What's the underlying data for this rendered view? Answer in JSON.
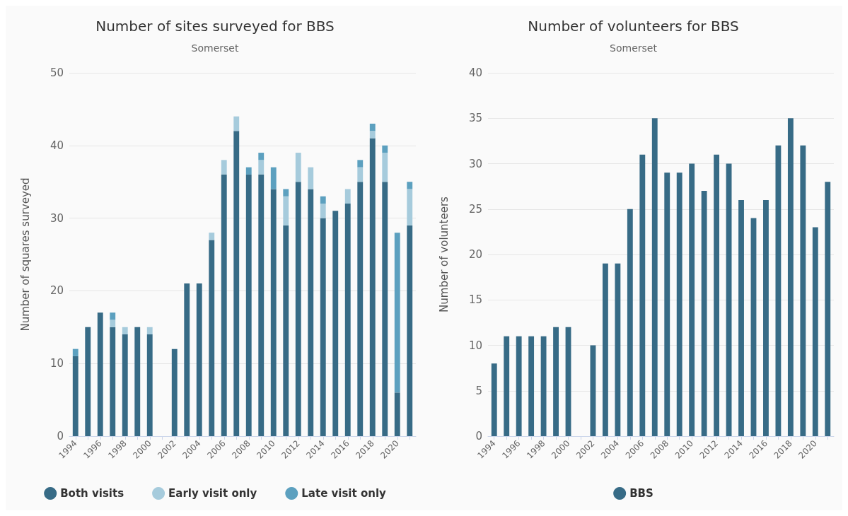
{
  "chart_data": [
    {
      "type": "bar",
      "title": "Number of sites surveyed for BBS",
      "subtitle": "Somerset",
      "ylabel": "Number of squares surveyed",
      "stacked": true,
      "categories": [
        "1994",
        null,
        "1996",
        null,
        "1998",
        null,
        "2000",
        null,
        "2002",
        null,
        "2004",
        null,
        "2006",
        null,
        "2008",
        null,
        "2010",
        null,
        "2012",
        null,
        "2014",
        null,
        "2016",
        null,
        "2018",
        null,
        "2020",
        null
      ],
      "series": [
        {
          "name": "Both visits",
          "color": "#376b86",
          "values": [
            11,
            15,
            17,
            15,
            14,
            15,
            14,
            null,
            12,
            21,
            21,
            27,
            36,
            42,
            36,
            36,
            34,
            29,
            35,
            34,
            30,
            31,
            32,
            35,
            41,
            35,
            6,
            29
          ]
        },
        {
          "name": "Early visit only",
          "color": "#a6cbdc",
          "values": [
            0,
            0,
            0,
            1,
            1,
            0,
            1,
            null,
            0,
            0,
            0,
            1,
            2,
            2,
            0,
            2,
            0,
            4,
            4,
            3,
            2,
            0,
            2,
            2,
            1,
            4,
            0,
            5
          ]
        },
        {
          "name": "Late visit only",
          "color": "#5ca0bf",
          "values": [
            1,
            0,
            0,
            1,
            0,
            0,
            0,
            null,
            0,
            0,
            0,
            0,
            0,
            0,
            1,
            1,
            3,
            1,
            0,
            0,
            1,
            0,
            0,
            1,
            1,
            1,
            22,
            1
          ]
        }
      ],
      "ylim": [
        0,
        50
      ],
      "yticks": [
        0,
        10,
        20,
        30,
        40,
        50
      ],
      "grid": "y",
      "legend": "bottom"
    },
    {
      "type": "bar",
      "title": "Number of volunteers for BBS",
      "subtitle": "Somerset",
      "ylabel": "Number of volunteers",
      "categories": [
        "1994",
        null,
        "1996",
        null,
        "1998",
        null,
        "2000",
        null,
        "2002",
        null,
        "2004",
        null,
        "2006",
        null,
        "2008",
        null,
        "2010",
        null,
        "2012",
        null,
        "2014",
        null,
        "2016",
        null,
        "2018",
        null,
        "2020",
        null
      ],
      "series": [
        {
          "name": "BBS",
          "color": "#376b86",
          "values": [
            8,
            11,
            11,
            11,
            11,
            12,
            12,
            null,
            10,
            19,
            19,
            25,
            31,
            35,
            29,
            29,
            30,
            27,
            31,
            30,
            26,
            24,
            26,
            32,
            35,
            32,
            23,
            28
          ]
        }
      ],
      "ylim": [
        0,
        40
      ],
      "yticks": [
        0,
        5,
        10,
        15,
        20,
        25,
        30,
        35,
        40
      ],
      "grid": "y",
      "legend": "bottom"
    }
  ]
}
